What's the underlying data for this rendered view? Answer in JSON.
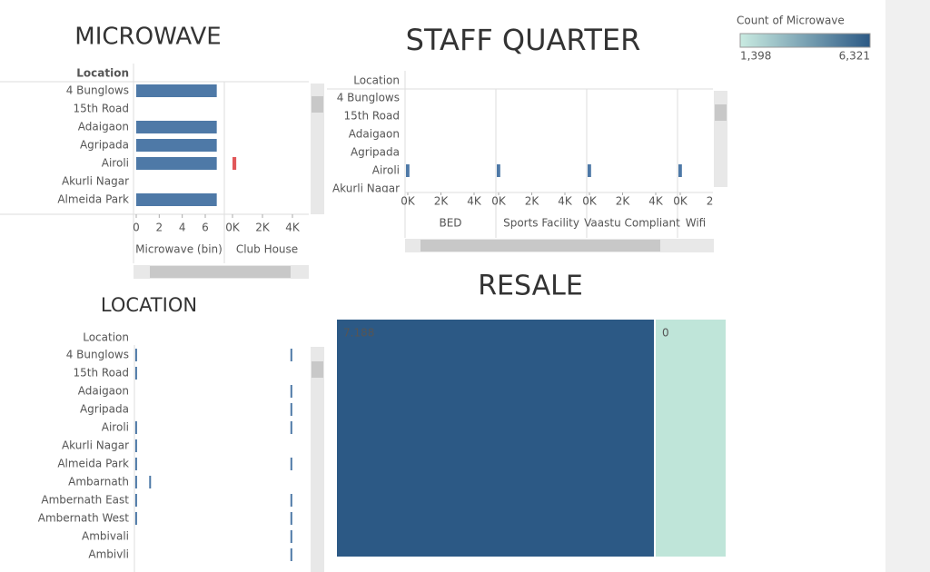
{
  "legend": {
    "title": "Count of Microwave",
    "min": {
      "value": 1398,
      "label": "1,398"
    },
    "max": {
      "value": 6321,
      "label": "6,321"
    },
    "colors": [
      "#c9ebe1",
      "#2c5985"
    ]
  },
  "microwave": {
    "title": "MICROWAVE",
    "row_header": "Location",
    "color": "#4e79a7",
    "mark_color": "#e15759",
    "categories": [
      "4 Bunglows",
      "15th Road",
      "Adaigaon",
      "Agripada",
      "Airoli",
      "Akurli Nagar",
      "Almeida Park"
    ],
    "bin_values": [
      7,
      null,
      7,
      7,
      7,
      null,
      7
    ],
    "bin_xlim": [
      0,
      6
    ],
    "bin_xticks": [
      0,
      2,
      4,
      6
    ],
    "bin_label": "Microwave (bin)",
    "club_values": [
      null,
      null,
      null,
      null,
      250,
      null,
      null
    ],
    "club_xlim": [
      0,
      4000
    ],
    "club_xticks": [
      {
        "value": 0,
        "label": "0K"
      },
      {
        "value": 2000,
        "label": "2K"
      },
      {
        "value": 4000,
        "label": "4K"
      }
    ],
    "club_label": "Club House"
  },
  "staff_quarter": {
    "title": "STAFF QUARTER",
    "row_header": "Location",
    "color": "#4e79a7",
    "categories": [
      "4 Bunglows",
      "15th Road",
      "Adaigaon",
      "Agripada",
      "Airoli",
      "Akurli Nagar"
    ],
    "xlim": [
      0,
      4000
    ],
    "xticks": [
      {
        "value": 0,
        "label": "0K"
      },
      {
        "value": 2000,
        "label": "2K"
      },
      {
        "value": 4000,
        "label": "4K"
      }
    ],
    "columns": [
      {
        "name": "BED",
        "values": [
          null,
          null,
          null,
          null,
          100,
          null
        ]
      },
      {
        "name": "Sports Facility",
        "values": [
          null,
          null,
          null,
          null,
          100,
          null
        ]
      },
      {
        "name": "Vaastu Compliant",
        "values": [
          null,
          null,
          null,
          null,
          100,
          null
        ]
      },
      {
        "name": "Wifi",
        "values": [
          null,
          null,
          null,
          null,
          100,
          null
        ]
      }
    ]
  },
  "location": {
    "title": "LOCATION",
    "row_header": "Location",
    "color": "#4e79a7",
    "xlim": [
      0,
      10
    ],
    "categories": [
      "4 Bunglows",
      "15th Road",
      "Adaigaon",
      "Agripada",
      "Airoli",
      "Akurli Nagar",
      "Almeida Park",
      "Ambarnath",
      "Ambernath East",
      "Ambernath West",
      "Ambivali",
      "Ambivli"
    ],
    "series": [
      {
        "values": [
          0.1,
          0.1,
          null,
          null,
          0.1,
          0.1,
          0.1,
          0.1,
          0.1,
          0.1,
          null,
          null
        ]
      },
      {
        "values": [
          null,
          null,
          null,
          null,
          null,
          null,
          null,
          0.9,
          null,
          null,
          null,
          null
        ]
      },
      {
        "values": [
          9,
          null,
          9,
          9,
          9,
          null,
          9,
          null,
          9,
          9,
          9,
          9
        ]
      }
    ]
  },
  "resale": {
    "title": "RESALE",
    "values": [
      7188,
      0
    ],
    "value_labels": [
      "7.188",
      "0"
    ],
    "colors": [
      "#2c5985",
      "#bfe5d9"
    ]
  }
}
